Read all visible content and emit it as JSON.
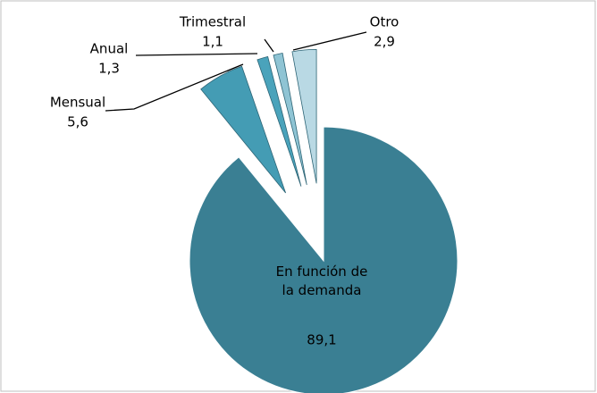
{
  "chart_data": {
    "type": "pie",
    "categories": [
      "En función de la demanda",
      "Mensual",
      "Anual",
      "Trimestral",
      "Otro"
    ],
    "values": [
      89.1,
      5.6,
      1.3,
      1.1,
      2.9
    ],
    "value_labels": [
      "89,1",
      "5,6",
      "1,3",
      "1,1",
      "2,9"
    ],
    "colors": [
      "#3a7f93",
      "#449cb4",
      "#4aa3bb",
      "#8fc4d4",
      "#b9d9e4"
    ]
  }
}
